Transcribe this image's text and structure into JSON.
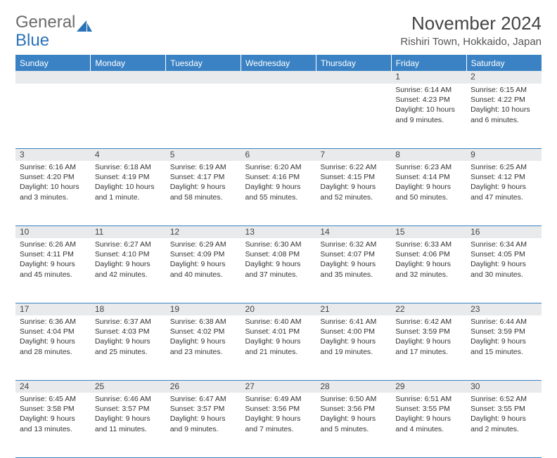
{
  "brand": {
    "part1": "General",
    "part2": "Blue"
  },
  "title": "November 2024",
  "location": "Rishiri Town, Hokkaido, Japan",
  "colors": {
    "header_bg": "#3b82c4",
    "header_text": "#ffffff",
    "daynum_bg": "#e9eaec",
    "border": "#3b82c4",
    "brand_gray": "#6b6b6b",
    "brand_blue": "#2a73b8"
  },
  "day_headers": [
    "Sunday",
    "Monday",
    "Tuesday",
    "Wednesday",
    "Thursday",
    "Friday",
    "Saturday"
  ],
  "weeks": [
    [
      null,
      null,
      null,
      null,
      null,
      {
        "n": "1",
        "sr": "Sunrise: 6:14 AM",
        "ss": "Sunset: 4:23 PM",
        "dl": "Daylight: 10 hours and 9 minutes."
      },
      {
        "n": "2",
        "sr": "Sunrise: 6:15 AM",
        "ss": "Sunset: 4:22 PM",
        "dl": "Daylight: 10 hours and 6 minutes."
      }
    ],
    [
      {
        "n": "3",
        "sr": "Sunrise: 6:16 AM",
        "ss": "Sunset: 4:20 PM",
        "dl": "Daylight: 10 hours and 3 minutes."
      },
      {
        "n": "4",
        "sr": "Sunrise: 6:18 AM",
        "ss": "Sunset: 4:19 PM",
        "dl": "Daylight: 10 hours and 1 minute."
      },
      {
        "n": "5",
        "sr": "Sunrise: 6:19 AM",
        "ss": "Sunset: 4:17 PM",
        "dl": "Daylight: 9 hours and 58 minutes."
      },
      {
        "n": "6",
        "sr": "Sunrise: 6:20 AM",
        "ss": "Sunset: 4:16 PM",
        "dl": "Daylight: 9 hours and 55 minutes."
      },
      {
        "n": "7",
        "sr": "Sunrise: 6:22 AM",
        "ss": "Sunset: 4:15 PM",
        "dl": "Daylight: 9 hours and 52 minutes."
      },
      {
        "n": "8",
        "sr": "Sunrise: 6:23 AM",
        "ss": "Sunset: 4:14 PM",
        "dl": "Daylight: 9 hours and 50 minutes."
      },
      {
        "n": "9",
        "sr": "Sunrise: 6:25 AM",
        "ss": "Sunset: 4:12 PM",
        "dl": "Daylight: 9 hours and 47 minutes."
      }
    ],
    [
      {
        "n": "10",
        "sr": "Sunrise: 6:26 AM",
        "ss": "Sunset: 4:11 PM",
        "dl": "Daylight: 9 hours and 45 minutes."
      },
      {
        "n": "11",
        "sr": "Sunrise: 6:27 AM",
        "ss": "Sunset: 4:10 PM",
        "dl": "Daylight: 9 hours and 42 minutes."
      },
      {
        "n": "12",
        "sr": "Sunrise: 6:29 AM",
        "ss": "Sunset: 4:09 PM",
        "dl": "Daylight: 9 hours and 40 minutes."
      },
      {
        "n": "13",
        "sr": "Sunrise: 6:30 AM",
        "ss": "Sunset: 4:08 PM",
        "dl": "Daylight: 9 hours and 37 minutes."
      },
      {
        "n": "14",
        "sr": "Sunrise: 6:32 AM",
        "ss": "Sunset: 4:07 PM",
        "dl": "Daylight: 9 hours and 35 minutes."
      },
      {
        "n": "15",
        "sr": "Sunrise: 6:33 AM",
        "ss": "Sunset: 4:06 PM",
        "dl": "Daylight: 9 hours and 32 minutes."
      },
      {
        "n": "16",
        "sr": "Sunrise: 6:34 AM",
        "ss": "Sunset: 4:05 PM",
        "dl": "Daylight: 9 hours and 30 minutes."
      }
    ],
    [
      {
        "n": "17",
        "sr": "Sunrise: 6:36 AM",
        "ss": "Sunset: 4:04 PM",
        "dl": "Daylight: 9 hours and 28 minutes."
      },
      {
        "n": "18",
        "sr": "Sunrise: 6:37 AM",
        "ss": "Sunset: 4:03 PM",
        "dl": "Daylight: 9 hours and 25 minutes."
      },
      {
        "n": "19",
        "sr": "Sunrise: 6:38 AM",
        "ss": "Sunset: 4:02 PM",
        "dl": "Daylight: 9 hours and 23 minutes."
      },
      {
        "n": "20",
        "sr": "Sunrise: 6:40 AM",
        "ss": "Sunset: 4:01 PM",
        "dl": "Daylight: 9 hours and 21 minutes."
      },
      {
        "n": "21",
        "sr": "Sunrise: 6:41 AM",
        "ss": "Sunset: 4:00 PM",
        "dl": "Daylight: 9 hours and 19 minutes."
      },
      {
        "n": "22",
        "sr": "Sunrise: 6:42 AM",
        "ss": "Sunset: 3:59 PM",
        "dl": "Daylight: 9 hours and 17 minutes."
      },
      {
        "n": "23",
        "sr": "Sunrise: 6:44 AM",
        "ss": "Sunset: 3:59 PM",
        "dl": "Daylight: 9 hours and 15 minutes."
      }
    ],
    [
      {
        "n": "24",
        "sr": "Sunrise: 6:45 AM",
        "ss": "Sunset: 3:58 PM",
        "dl": "Daylight: 9 hours and 13 minutes."
      },
      {
        "n": "25",
        "sr": "Sunrise: 6:46 AM",
        "ss": "Sunset: 3:57 PM",
        "dl": "Daylight: 9 hours and 11 minutes."
      },
      {
        "n": "26",
        "sr": "Sunrise: 6:47 AM",
        "ss": "Sunset: 3:57 PM",
        "dl": "Daylight: 9 hours and 9 minutes."
      },
      {
        "n": "27",
        "sr": "Sunrise: 6:49 AM",
        "ss": "Sunset: 3:56 PM",
        "dl": "Daylight: 9 hours and 7 minutes."
      },
      {
        "n": "28",
        "sr": "Sunrise: 6:50 AM",
        "ss": "Sunset: 3:56 PM",
        "dl": "Daylight: 9 hours and 5 minutes."
      },
      {
        "n": "29",
        "sr": "Sunrise: 6:51 AM",
        "ss": "Sunset: 3:55 PM",
        "dl": "Daylight: 9 hours and 4 minutes."
      },
      {
        "n": "30",
        "sr": "Sunrise: 6:52 AM",
        "ss": "Sunset: 3:55 PM",
        "dl": "Daylight: 9 hours and 2 minutes."
      }
    ]
  ]
}
